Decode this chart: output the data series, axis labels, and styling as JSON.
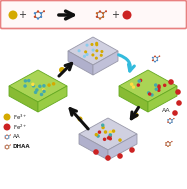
{
  "bg": "#ffffff",
  "border_color": "#e88080",
  "fe3_color": "#d4aa00",
  "fe2_color": "#cc2222",
  "teal_color": "#44aaaa",
  "yellow_color": "#ddcc44",
  "mof_green_color": "#99cc44",
  "mof_gray_color": "#bbbbcc",
  "mof_edge_color": "#888899",
  "mof_green_edge": "#77aa33",
  "arrow_color": "#111111",
  "cyan_arrow_color": "#33bbdd",
  "face_top_color": "#ccccdd",
  "face_left_color": "#aaaacc",
  "face_right_color": "#bbbbcc",
  "green_face_top": "#aad455",
  "green_face_left": "#88bb33",
  "green_face_right": "#99cc44"
}
